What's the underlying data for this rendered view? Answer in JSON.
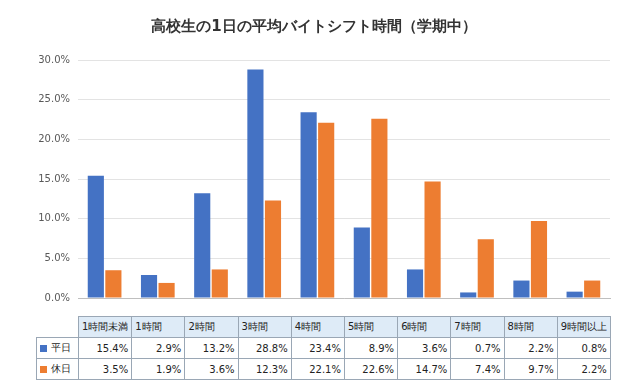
{
  "chart_data": {
    "type": "bar",
    "title": "高校生の1日の平均バイトシフト時間（学期中）",
    "categories": [
      "1時間未満",
      "1時間",
      "2時間",
      "3時間",
      "4時間",
      "5時間",
      "6時間",
      "7時間",
      "8時間",
      "9時間以上"
    ],
    "series": [
      {
        "name": "平日",
        "color": "#4472c4",
        "values": [
          15.4,
          2.9,
          13.2,
          28.8,
          23.4,
          8.9,
          3.6,
          0.7,
          2.2,
          0.8
        ],
        "value_labels": [
          "15.4%",
          "2.9%",
          "13.2%",
          "28.8%",
          "23.4%",
          "8.9%",
          "3.6%",
          "0.7%",
          "2.2%",
          "0.8%"
        ]
      },
      {
        "name": "休日",
        "color": "#ed7d31",
        "values": [
          3.5,
          1.9,
          3.6,
          12.3,
          22.1,
          22.6,
          14.7,
          7.4,
          9.7,
          2.2
        ],
        "value_labels": [
          "3.5%",
          "1.9%",
          "3.6%",
          "12.3%",
          "22.1%",
          "22.6%",
          "14.7%",
          "7.4%",
          "9.7%",
          "2.2%"
        ]
      }
    ],
    "ylim": [
      0,
      30
    ],
    "yticks": [
      {
        "value": 0,
        "label": "0.0%"
      },
      {
        "value": 5,
        "label": "5.0%"
      },
      {
        "value": 10,
        "label": "10.0%"
      },
      {
        "value": 15,
        "label": "15.0%"
      },
      {
        "value": 20,
        "label": "20.0%"
      },
      {
        "value": 25,
        "label": "25.0%"
      },
      {
        "value": 30,
        "label": "30.0%"
      }
    ],
    "grid": true,
    "tick_labels": "y"
  }
}
